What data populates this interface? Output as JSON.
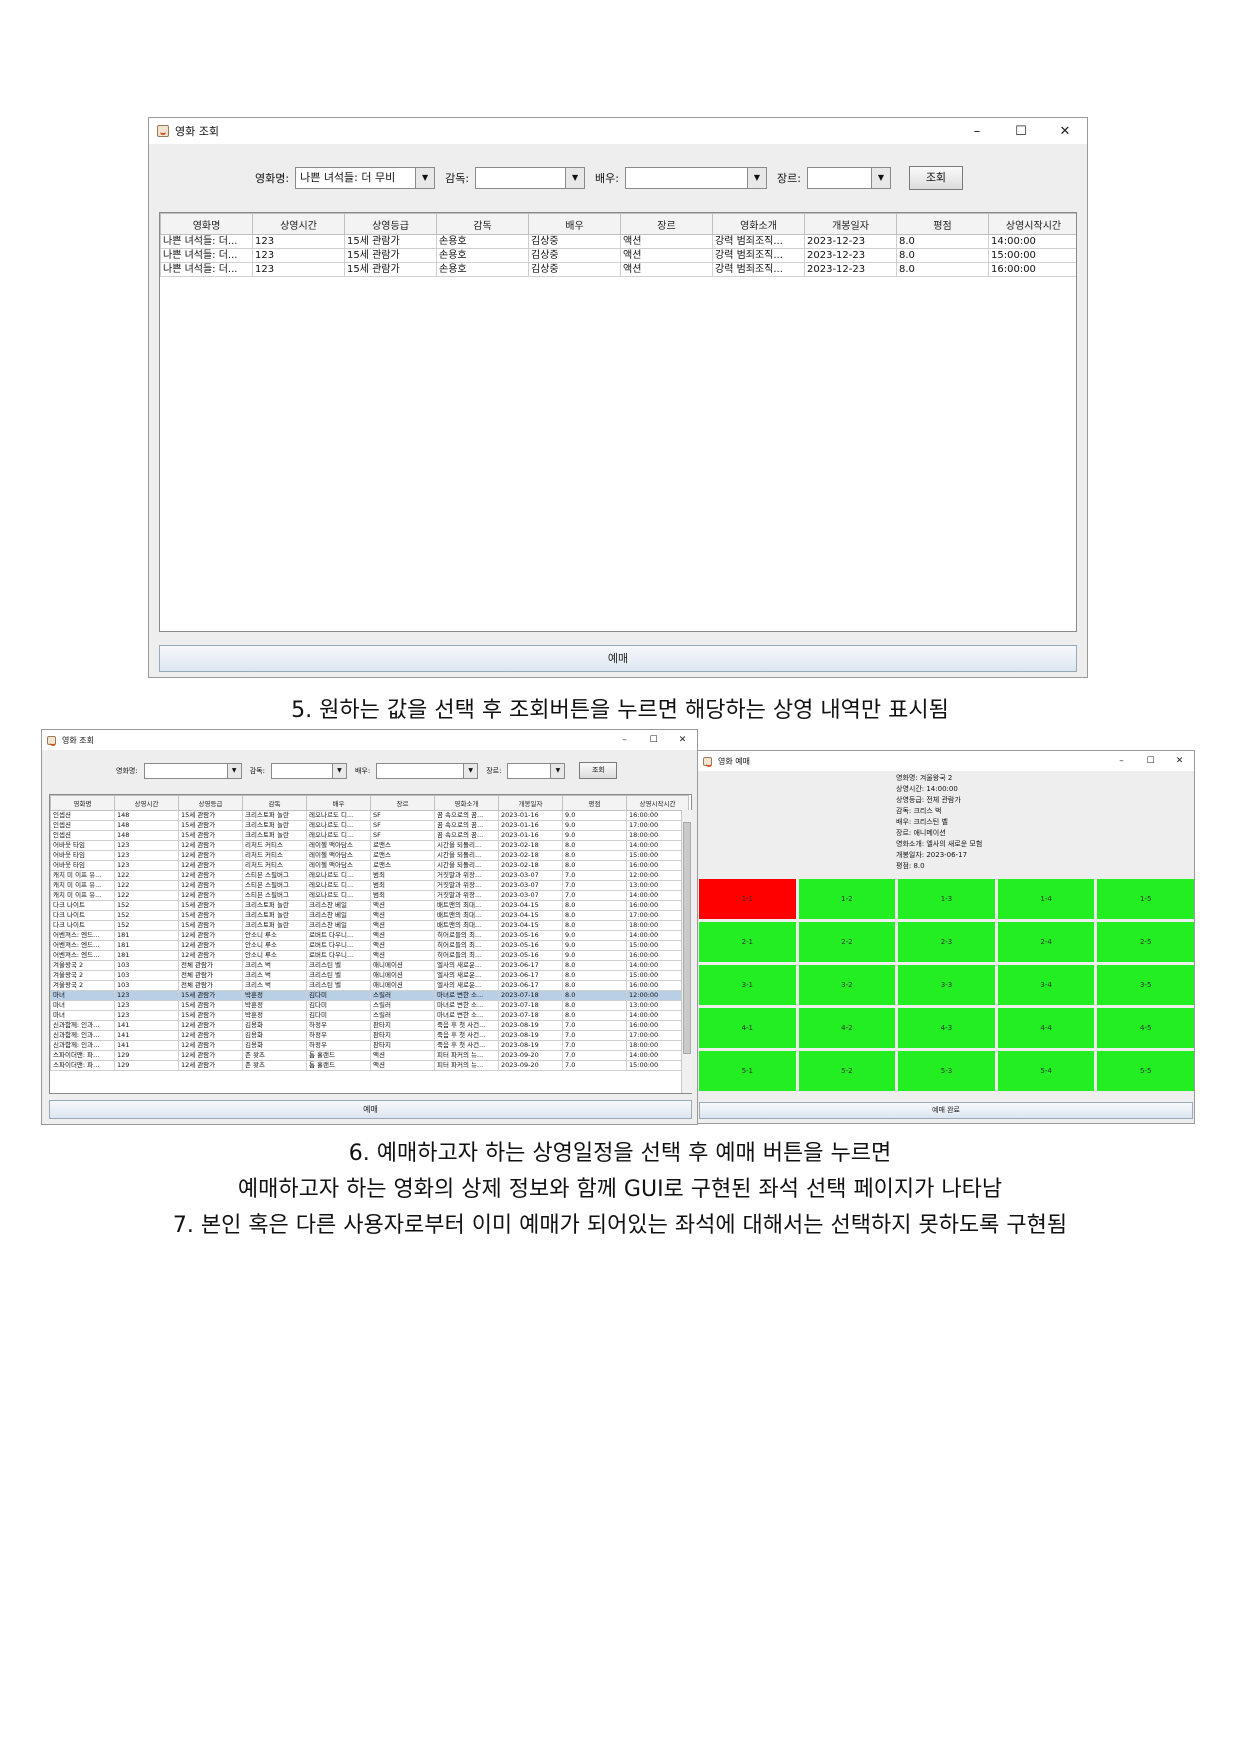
{
  "window1": {
    "title": "영화 조회",
    "filters": {
      "movie_label": "영화명:",
      "movie_value": "나쁜 녀석들: 더 무비",
      "director_label": "감독:",
      "director_value": "",
      "actor_label": "배우:",
      "actor_value": "",
      "genre_label": "장르:",
      "genre_value": ""
    },
    "search_button": "조회",
    "columns": [
      "영화명",
      "상영시간",
      "상영등급",
      "감독",
      "배우",
      "장르",
      "영화소개",
      "개봉일자",
      "평점",
      "상영시작시간"
    ],
    "rows": [
      [
        "나쁜 녀석들: 더...",
        "123",
        "15세 관람가",
        "손용호",
        "김상중",
        "액션",
        "강력 범죄조직...",
        "2023-12-23",
        "8.0",
        "14:00:00"
      ],
      [
        "나쁜 녀석들: 더...",
        "123",
        "15세 관람가",
        "손용호",
        "김상중",
        "액션",
        "강력 범죄조직...",
        "2023-12-23",
        "8.0",
        "15:00:00"
      ],
      [
        "나쁜 녀석들: 더...",
        "123",
        "15세 관람가",
        "손용호",
        "김상중",
        "액션",
        "강력 범죄조직...",
        "2023-12-23",
        "8.0",
        "16:00:00"
      ]
    ],
    "reserve_button": "예매"
  },
  "caption5": "5. 원하는 값을 선택 후 조회버튼을 누르면 해당하는 상영 내역만 표시됨",
  "window2": {
    "title": "영화 조회",
    "filters": {
      "movie_label": "영화명:",
      "director_label": "감독:",
      "actor_label": "배우:",
      "genre_label": "장르:"
    },
    "search_button": "조회",
    "columns": [
      "영화명",
      "상영시간",
      "상영등급",
      "감독",
      "배우",
      "장르",
      "영화소개",
      "개봉일자",
      "평점",
      "상영시작시간"
    ],
    "selected_row": 18,
    "rows": [
      [
        "인셉션",
        "148",
        "15세 관람가",
        "크리스토퍼 놀란",
        "레오나르도 디...",
        "SF",
        "꿈 속으로의 꿈...",
        "2023-01-16",
        "9.0",
        "16:00:00"
      ],
      [
        "인셉션",
        "148",
        "15세 관람가",
        "크리스토퍼 놀란",
        "레오나르도 디...",
        "SF",
        "꿈 속으로의 꿈...",
        "2023-01-16",
        "9.0",
        "17:00:00"
      ],
      [
        "인셉션",
        "148",
        "15세 관람가",
        "크리스토퍼 놀란",
        "레오나르도 디...",
        "SF",
        "꿈 속으로의 꿈...",
        "2023-01-16",
        "9.0",
        "18:00:00"
      ],
      [
        "어바웃 타임",
        "123",
        "12세 관람가",
        "리처드 커티스",
        "레이첼 맥아담스",
        "로맨스",
        "시간을 되돌리...",
        "2023-02-18",
        "8.0",
        "14:00:00"
      ],
      [
        "어바웃 타임",
        "123",
        "12세 관람가",
        "리처드 커티스",
        "레이첼 맥아담스",
        "로맨스",
        "시간을 되돌리...",
        "2023-02-18",
        "8.0",
        "15:00:00"
      ],
      [
        "어바웃 타임",
        "123",
        "12세 관람가",
        "리처드 커티스",
        "레이첼 맥아담스",
        "로맨스",
        "시간을 되돌리...",
        "2023-02-18",
        "8.0",
        "16:00:00"
      ],
      [
        "캐치 미 이프 유...",
        "122",
        "12세 관람가",
        "스티븐 스필버그",
        "레오나르도 디...",
        "범죄",
        "거짓말과 위장...",
        "2023-03-07",
        "7.0",
        "12:00:00"
      ],
      [
        "캐치 미 이프 유...",
        "122",
        "12세 관람가",
        "스티븐 스필버그",
        "레오나르도 디...",
        "범죄",
        "거짓말과 위장...",
        "2023-03-07",
        "7.0",
        "13:00:00"
      ],
      [
        "캐치 미 이프 유...",
        "122",
        "12세 관람가",
        "스티븐 스필버그",
        "레오나르도 디...",
        "범죄",
        "거짓말과 위장...",
        "2023-03-07",
        "7.0",
        "14:00:00"
      ],
      [
        "다크 나이트",
        "152",
        "15세 관람가",
        "크리스토퍼 놀란",
        "크리스찬 베일",
        "액션",
        "배트맨의 최대...",
        "2023-04-15",
        "8.0",
        "16:00:00"
      ],
      [
        "다크 나이트",
        "152",
        "15세 관람가",
        "크리스토퍼 놀란",
        "크리스찬 베일",
        "액션",
        "배트맨의 최대...",
        "2023-04-15",
        "8.0",
        "17:00:00"
      ],
      [
        "다크 나이트",
        "152",
        "15세 관람가",
        "크리스토퍼 놀란",
        "크리스찬 베일",
        "액션",
        "배트맨의 최대...",
        "2023-04-15",
        "8.0",
        "18:00:00"
      ],
      [
        "어벤져스: 엔드...",
        "181",
        "12세 관람가",
        "안소니 루소",
        "로버트 다우니...",
        "액션",
        "히어로들의 최...",
        "2023-05-16",
        "9.0",
        "14:00:00"
      ],
      [
        "어벤져스: 엔드...",
        "181",
        "12세 관람가",
        "안소니 루소",
        "로버트 다우니...",
        "액션",
        "히어로들의 최...",
        "2023-05-16",
        "9.0",
        "15:00:00"
      ],
      [
        "어벤져스: 엔드...",
        "181",
        "12세 관람가",
        "안소니 루소",
        "로버트 다우니...",
        "액션",
        "히어로들의 최...",
        "2023-05-16",
        "9.0",
        "16:00:00"
      ],
      [
        "겨울왕국 2",
        "103",
        "전체 관람가",
        "크리스 벅",
        "크리스틴 벨",
        "애니메이션",
        "엘사의 새로운...",
        "2023-06-17",
        "8.0",
        "14:00:00"
      ],
      [
        "겨울왕국 2",
        "103",
        "전체 관람가",
        "크리스 벅",
        "크리스틴 벨",
        "애니메이션",
        "엘사의 새로운...",
        "2023-06-17",
        "8.0",
        "15:00:00"
      ],
      [
        "겨울왕국 2",
        "103",
        "전체 관람가",
        "크리스 벅",
        "크리스틴 벨",
        "애니메이션",
        "엘사의 새로운...",
        "2023-06-17",
        "8.0",
        "16:00:00"
      ],
      [
        "마녀",
        "123",
        "15세 관람가",
        "박훈정",
        "김다미",
        "스릴러",
        "마녀로 변한 소...",
        "2023-07-18",
        "8.0",
        "12:00:00"
      ],
      [
        "마녀",
        "123",
        "15세 관람가",
        "박훈정",
        "김다미",
        "스릴러",
        "마녀로 변한 소...",
        "2023-07-18",
        "8.0",
        "13:00:00"
      ],
      [
        "마녀",
        "123",
        "15세 관람가",
        "박훈정",
        "김다미",
        "스릴러",
        "마녀로 변한 소...",
        "2023-07-18",
        "8.0",
        "14:00:00"
      ],
      [
        "신과함께: 인과...",
        "141",
        "12세 관람가",
        "김용화",
        "하정우",
        "판타지",
        "죽음 후 첫 사건...",
        "2023-08-19",
        "7.0",
        "16:00:00"
      ],
      [
        "신과함께: 인과...",
        "141",
        "12세 관람가",
        "김용화",
        "하정우",
        "판타지",
        "죽음 후 첫 사건...",
        "2023-08-19",
        "7.0",
        "17:00:00"
      ],
      [
        "신과함께: 인과...",
        "141",
        "12세 관람가",
        "김용화",
        "하정우",
        "판타지",
        "죽음 후 첫 사건...",
        "2023-08-19",
        "7.0",
        "18:00:00"
      ],
      [
        "스파이더맨: 파...",
        "129",
        "12세 관람가",
        "존 왓츠",
        "톰 홀랜드",
        "액션",
        "피터 파커의 뉴...",
        "2023-09-20",
        "7.0",
        "14:00:00"
      ],
      [
        "스파이더맨: 파...",
        "129",
        "12세 관람가",
        "존 왓츠",
        "톰 홀랜드",
        "액션",
        "피터 파커의 뉴...",
        "2023-09-20",
        "7.0",
        "15:00:00"
      ]
    ],
    "reserve_button": "예매"
  },
  "window3": {
    "title": "영화 예매",
    "info": [
      "영화명: 겨울왕국 2",
      "상영시간: 14:00:00",
      "상영등급: 전체 관람가",
      "감독: 크리스 벅",
      "배우: 크리스틴 벨",
      "장르: 애니메이션",
      "영화소개: 엘사의 새로운 모험",
      "개봉일자: 2023-06-17",
      "평점: 8.0"
    ],
    "seats": [
      [
        "1-1",
        "1-2",
        "1-3",
        "1-4",
        "1-5"
      ],
      [
        "2-1",
        "2-2",
        "2-3",
        "2-4",
        "2-5"
      ],
      [
        "3-1",
        "3-2",
        "3-3",
        "3-4",
        "3-5"
      ],
      [
        "4-1",
        "4-2",
        "4-3",
        "4-4",
        "4-5"
      ],
      [
        "5-1",
        "5-2",
        "5-3",
        "5-4",
        "5-5"
      ]
    ],
    "reserved_seats": [
      "1-1"
    ],
    "colors": {
      "reserved": "#ff0000",
      "available": "#22ee22"
    },
    "complete_button": "예매 완료"
  },
  "caption6_line1": "6. 예매하고자 하는 상영일정을 선택 후 예매 버튼을 누르면",
  "caption6_line2": "예매하고자 하는 영화의 상제 정보와 함께 GUI로 구현된 좌석 선택 페이지가 나타남",
  "caption7": "7. 본인 혹은 다른 사용자로부터 이미 예매가 되어있는 좌석에 대해서는 선택하지 못하도록 구현됨"
}
